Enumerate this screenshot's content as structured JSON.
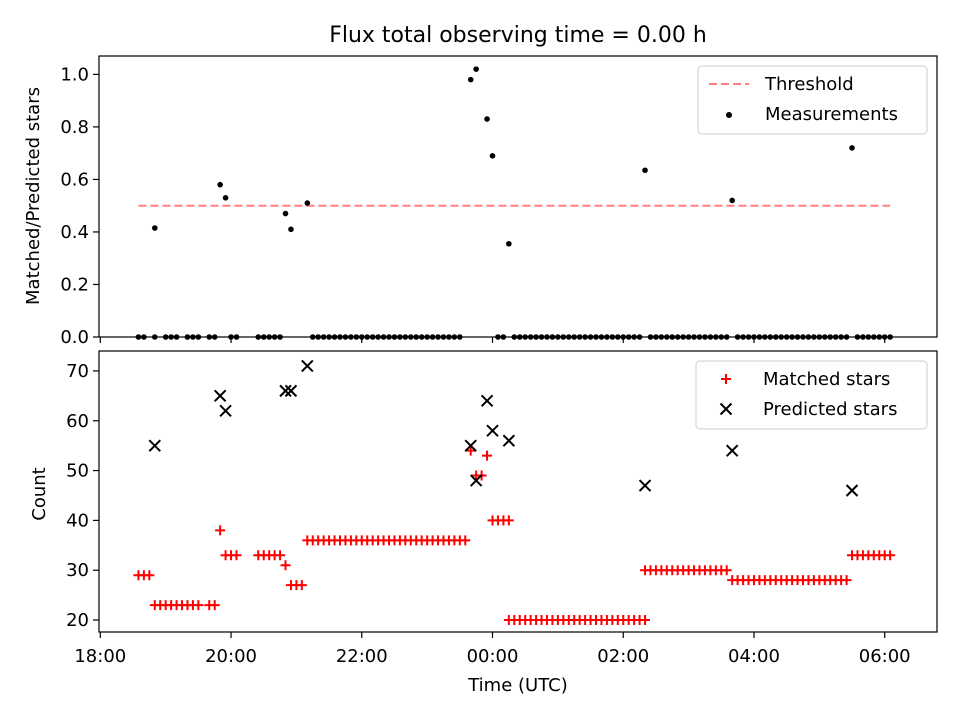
{
  "figure": {
    "title": "Flux total observing time = 0.00 h"
  },
  "colors": {
    "threshold": "#ff7f7f",
    "measurement": "#000000",
    "matched": "#ff0000",
    "predicted": "#000000"
  },
  "chart_data": [
    {
      "type": "scatter",
      "panel": "top",
      "title": "Flux total observing time = 0.00 h",
      "xlabel": "",
      "ylabel": "Matched/Predicted stars",
      "xlim_hours": [
        17.98,
        30.8
      ],
      "ylim": [
        0,
        1.07
      ],
      "yticks": [
        0.0,
        0.2,
        0.4,
        0.6,
        0.8,
        1.0
      ],
      "ytick_labels": [
        "0.0",
        "0.2",
        "0.4",
        "0.6",
        "0.8",
        "1.0"
      ],
      "legend": {
        "placement": "top-right",
        "entries": [
          "Threshold",
          "Measurements"
        ]
      },
      "series": [
        {
          "name": "Threshold",
          "style": "dashed-line",
          "color": "#ff7f7f",
          "points": [
            [
              "18:35",
              0.5
            ],
            [
              "06:05",
              0.5
            ]
          ]
        },
        {
          "name": "Measurements",
          "style": "dot",
          "color": "#000000",
          "points": [
            [
              "18:50",
              0.415
            ],
            [
              "19:50",
              0.58
            ],
            [
              "19:55",
              0.53
            ],
            [
              "20:50",
              0.47
            ],
            [
              "20:55",
              0.41
            ],
            [
              "21:10",
              0.51
            ],
            [
              "23:40",
              0.98
            ],
            [
              "23:45",
              1.02
            ],
            [
              "23:55",
              0.83
            ],
            [
              "00:00",
              0.69
            ],
            [
              "00:15",
              0.355
            ],
            [
              "02:20",
              0.635
            ],
            [
              "03:40",
              0.52
            ],
            [
              "05:30",
              0.72
            ]
          ]
        },
        {
          "name": "",
          "style": "dot-zero",
          "color": "#000000",
          "points": [
            [
              "18:35",
              0
            ],
            [
              "18:40",
              0
            ],
            [
              "18:50",
              0
            ],
            [
              "19:00",
              0
            ],
            [
              "19:05",
              0
            ],
            [
              "19:10",
              0
            ],
            [
              "19:20",
              0
            ],
            [
              "19:25",
              0
            ],
            [
              "19:30",
              0
            ],
            [
              "19:40",
              0
            ],
            [
              "19:45",
              0
            ],
            [
              "20:00",
              0
            ],
            [
              "20:05",
              0
            ],
            [
              "20:25",
              0
            ],
            [
              "20:30",
              0
            ],
            [
              "20:35",
              0
            ],
            [
              "20:40",
              0
            ],
            [
              "20:45",
              0
            ],
            [
              "21:15",
              0
            ],
            [
              "21:20",
              0
            ],
            [
              "21:25",
              0
            ],
            [
              "21:30",
              0
            ],
            [
              "21:35",
              0
            ],
            [
              "21:40",
              0
            ],
            [
              "21:45",
              0
            ],
            [
              "21:50",
              0
            ],
            [
              "21:55",
              0
            ],
            [
              "22:00",
              0
            ],
            [
              "22:05",
              0
            ],
            [
              "22:10",
              0
            ],
            [
              "22:15",
              0
            ],
            [
              "22:20",
              0
            ],
            [
              "22:25",
              0
            ],
            [
              "22:30",
              0
            ],
            [
              "22:35",
              0
            ],
            [
              "22:40",
              0
            ],
            [
              "22:45",
              0
            ],
            [
              "22:50",
              0
            ],
            [
              "22:55",
              0
            ],
            [
              "23:00",
              0
            ],
            [
              "23:05",
              0
            ],
            [
              "23:10",
              0
            ],
            [
              "23:15",
              0
            ],
            [
              "23:20",
              0
            ],
            [
              "23:25",
              0
            ],
            [
              "23:30",
              0
            ],
            [
              "00:05",
              0
            ],
            [
              "00:10",
              0
            ],
            [
              "00:20",
              0
            ],
            [
              "00:25",
              0
            ],
            [
              "00:30",
              0
            ],
            [
              "00:35",
              0
            ],
            [
              "00:40",
              0
            ],
            [
              "00:45",
              0
            ],
            [
              "00:50",
              0
            ],
            [
              "00:55",
              0
            ],
            [
              "01:00",
              0
            ],
            [
              "01:05",
              0
            ],
            [
              "01:10",
              0
            ],
            [
              "01:15",
              0
            ],
            [
              "01:20",
              0
            ],
            [
              "01:25",
              0
            ],
            [
              "01:30",
              0
            ],
            [
              "01:35",
              0
            ],
            [
              "01:40",
              0
            ],
            [
              "01:45",
              0
            ],
            [
              "01:50",
              0
            ],
            [
              "01:55",
              0
            ],
            [
              "02:00",
              0
            ],
            [
              "02:05",
              0
            ],
            [
              "02:10",
              0
            ],
            [
              "02:15",
              0
            ],
            [
              "02:25",
              0
            ],
            [
              "02:30",
              0
            ],
            [
              "02:35",
              0
            ],
            [
              "02:40",
              0
            ],
            [
              "02:45",
              0
            ],
            [
              "02:50",
              0
            ],
            [
              "02:55",
              0
            ],
            [
              "03:00",
              0
            ],
            [
              "03:05",
              0
            ],
            [
              "03:10",
              0
            ],
            [
              "03:15",
              0
            ],
            [
              "03:20",
              0
            ],
            [
              "03:25",
              0
            ],
            [
              "03:30",
              0
            ],
            [
              "03:35",
              0
            ],
            [
              "03:45",
              0
            ],
            [
              "03:50",
              0
            ],
            [
              "03:55",
              0
            ],
            [
              "04:00",
              0
            ],
            [
              "04:05",
              0
            ],
            [
              "04:10",
              0
            ],
            [
              "04:15",
              0
            ],
            [
              "04:20",
              0
            ],
            [
              "04:25",
              0
            ],
            [
              "04:30",
              0
            ],
            [
              "04:35",
              0
            ],
            [
              "04:40",
              0
            ],
            [
              "04:45",
              0
            ],
            [
              "04:50",
              0
            ],
            [
              "04:55",
              0
            ],
            [
              "05:00",
              0
            ],
            [
              "05:05",
              0
            ],
            [
              "05:10",
              0
            ],
            [
              "05:15",
              0
            ],
            [
              "05:20",
              0
            ],
            [
              "05:25",
              0
            ],
            [
              "05:35",
              0
            ],
            [
              "05:40",
              0
            ],
            [
              "05:45",
              0
            ],
            [
              "05:50",
              0
            ],
            [
              "05:55",
              0
            ],
            [
              "06:00",
              0
            ],
            [
              "06:05",
              0
            ]
          ]
        }
      ]
    },
    {
      "type": "scatter",
      "panel": "bottom",
      "xlabel": "Time (UTC)",
      "ylabel": "Count",
      "xlim_hours": [
        17.98,
        30.8
      ],
      "ylim": [
        17.6,
        74
      ],
      "xticks": [
        "18:00",
        "20:00",
        "22:00",
        "00:00",
        "02:00",
        "04:00",
        "06:00"
      ],
      "yticks": [
        20,
        30,
        40,
        50,
        60,
        70
      ],
      "ytick_labels": [
        "20",
        "30",
        "40",
        "50",
        "60",
        "70"
      ],
      "legend": {
        "placement": "top-right",
        "entries": [
          "Matched stars",
          "Predicted stars"
        ]
      },
      "series": [
        {
          "name": "Matched stars",
          "marker": "plus",
          "color": "#ff0000",
          "segments": [
            {
              "from": "18:35",
              "to": "18:45",
              "value": 29
            },
            {
              "from": "18:50",
              "to": "19:30",
              "value": 23
            },
            {
              "from": "19:40",
              "to": "19:45",
              "value": 23
            },
            {
              "from": "19:55",
              "to": "20:05",
              "value": 33
            },
            {
              "from": "20:25",
              "to": "20:45",
              "value": 33
            },
            {
              "from": "20:55",
              "to": "21:05",
              "value": 27
            },
            {
              "from": "21:10",
              "to": "23:35",
              "value": 36
            },
            {
              "from": "00:00",
              "to": "00:15",
              "value": 40
            },
            {
              "from": "00:15",
              "to": "02:20",
              "value": 20
            },
            {
              "from": "02:20",
              "to": "03:35",
              "value": 30
            },
            {
              "from": "03:40",
              "to": "05:25",
              "value": 28
            },
            {
              "from": "05:30",
              "to": "06:05",
              "value": 33
            }
          ],
          "points": [
            [
              "19:50",
              38
            ],
            [
              "20:50",
              31
            ],
            [
              "23:40",
              54
            ],
            [
              "23:45",
              49
            ],
            [
              "23:50",
              49
            ],
            [
              "23:55",
              53
            ]
          ]
        },
        {
          "name": "Predicted stars",
          "marker": "x",
          "color": "#000000",
          "points": [
            [
              "18:50",
              55
            ],
            [
              "19:50",
              65
            ],
            [
              "19:55",
              62
            ],
            [
              "20:50",
              66
            ],
            [
              "20:55",
              66
            ],
            [
              "21:10",
              71
            ],
            [
              "23:40",
              55
            ],
            [
              "23:45",
              48
            ],
            [
              "23:55",
              64
            ],
            [
              "00:00",
              58
            ],
            [
              "00:15",
              56
            ],
            [
              "02:20",
              47
            ],
            [
              "03:40",
              54
            ],
            [
              "05:30",
              46
            ]
          ]
        }
      ]
    }
  ]
}
